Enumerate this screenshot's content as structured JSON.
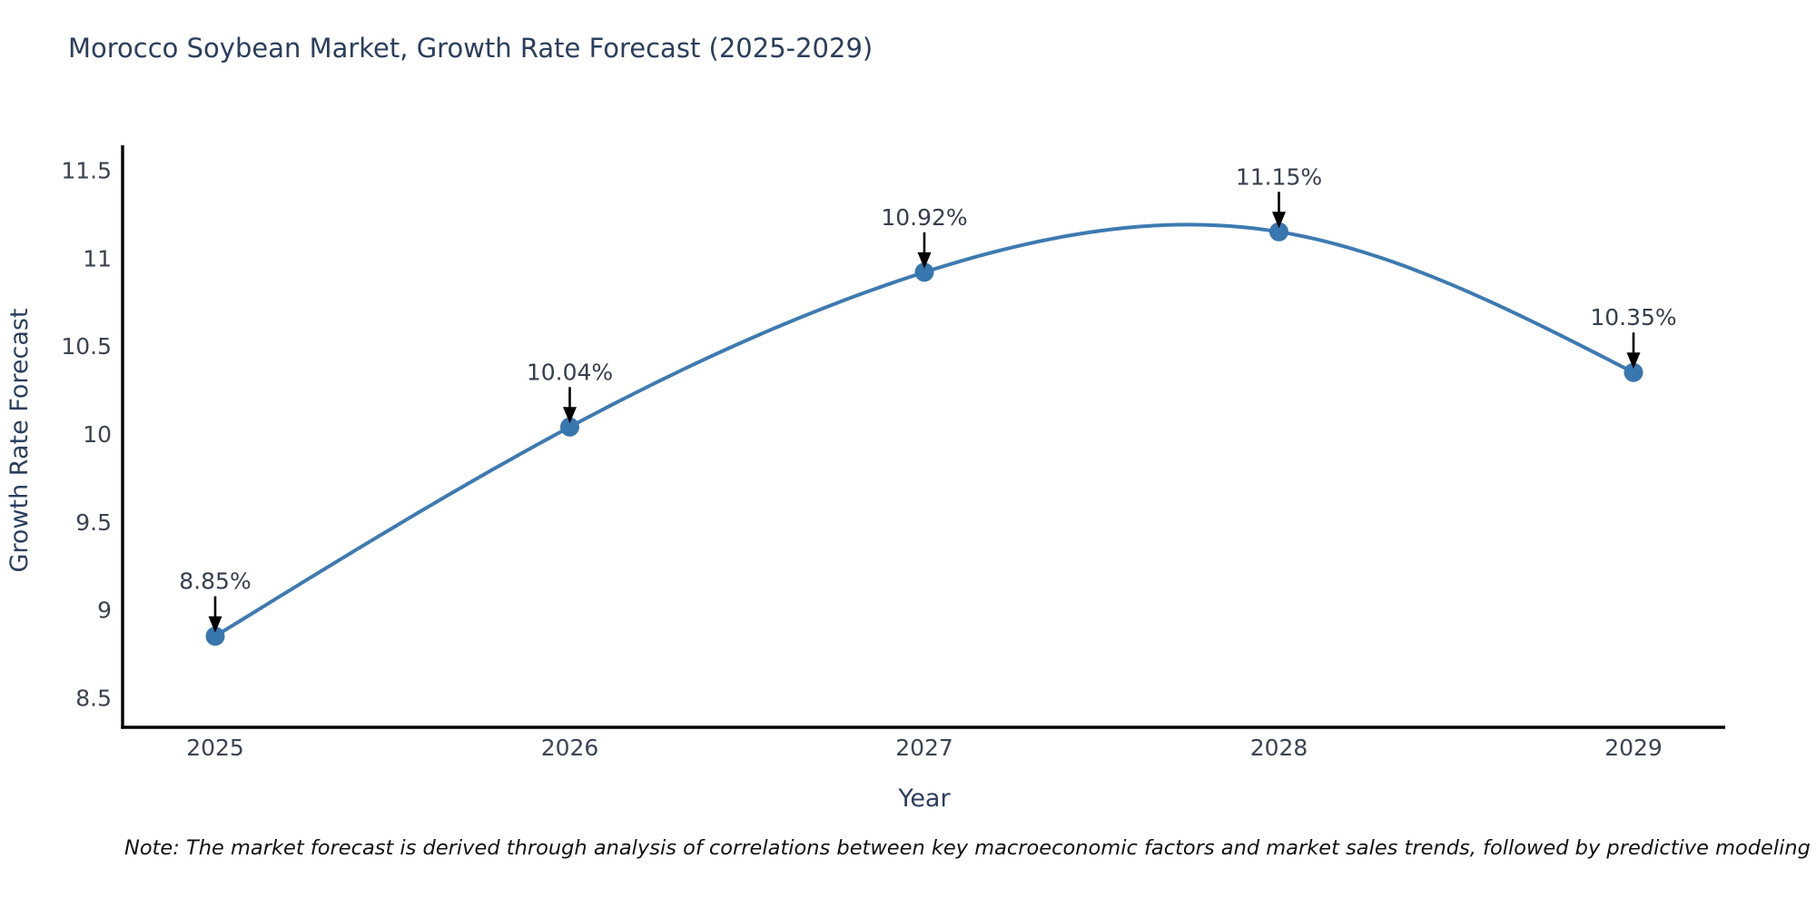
{
  "page": {
    "note": "Note: The market forecast is derived through analysis of correlations between key macroeconomic factors and market sales trends, followed by predictive modeling to project future sales"
  },
  "chart_data": {
    "type": "line",
    "title": "Morocco Soybean Market, Growth Rate Forecast (2025-2029)",
    "xlabel": "Year",
    "ylabel": "Growth Rate Forecast",
    "x": [
      2025,
      2026,
      2027,
      2028,
      2029
    ],
    "y": [
      8.85,
      10.04,
      10.92,
      11.15,
      10.35
    ],
    "point_labels": [
      "8.85%",
      "10.04%",
      "10.92%",
      "11.15%",
      "10.35%"
    ],
    "yticks": [
      8.5,
      9,
      9.5,
      10,
      10.5,
      11,
      11.5
    ],
    "ylim": [
      8.4,
      11.6
    ],
    "xlim": [
      2024.74,
      2029.26
    ],
    "grid": false,
    "legend_position": "none",
    "line_shape": "spline",
    "annotation_arrows": true,
    "colors": {
      "line": "#3d7ab2",
      "marker": "#3876b0",
      "arrow": "#000000",
      "axis_line": "#000000",
      "title_text": "#2a3f5f",
      "axis_title_text": "#2a3f5f",
      "tick_text": "#3b4552",
      "annotation_text": "#353f4d",
      "note_text": "#111111"
    }
  }
}
